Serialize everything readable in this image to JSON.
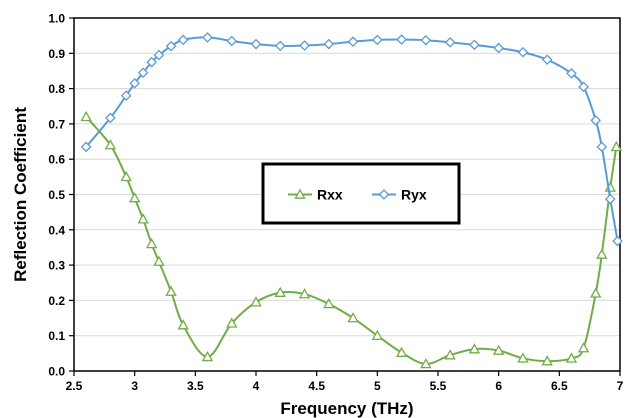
{
  "chart_data": {
    "type": "line",
    "xlabel": "Frequency (THz)",
    "ylabel": "Reflection Coefficient",
    "xlim": [
      2.5,
      7
    ],
    "ylim": [
      0,
      1.0
    ],
    "x_ticks": [
      "2.5",
      "3",
      "3.5",
      "4",
      "4.5",
      "5",
      "5.5",
      "6",
      "6.5",
      "7"
    ],
    "y_ticks": [
      "0.0",
      "0.1",
      "0.2",
      "0.3",
      "0.4",
      "0.5",
      "0.6",
      "0.7",
      "0.8",
      "0.9",
      "1.0"
    ],
    "grid": "horizontal",
    "legend_position": "center",
    "series": [
      {
        "name": "Rxx",
        "color": "#70ad47",
        "marker": "triangle",
        "points": [
          [
            2.6,
            0.72
          ],
          [
            2.8,
            0.64
          ],
          [
            2.93,
            0.55
          ],
          [
            3.0,
            0.49
          ],
          [
            3.07,
            0.43
          ],
          [
            3.14,
            0.36
          ],
          [
            3.2,
            0.31
          ],
          [
            3.3,
            0.225
          ],
          [
            3.4,
            0.13
          ],
          [
            3.6,
            0.04
          ],
          [
            3.8,
            0.135
          ],
          [
            4.0,
            0.195
          ],
          [
            4.2,
            0.222
          ],
          [
            4.4,
            0.218
          ],
          [
            4.6,
            0.19
          ],
          [
            4.8,
            0.15
          ],
          [
            5.0,
            0.1
          ],
          [
            5.2,
            0.052
          ],
          [
            5.4,
            0.02
          ],
          [
            5.6,
            0.045
          ],
          [
            5.8,
            0.062
          ],
          [
            6.0,
            0.058
          ],
          [
            6.2,
            0.036
          ],
          [
            6.4,
            0.028
          ],
          [
            6.6,
            0.036
          ],
          [
            6.7,
            0.065
          ],
          [
            6.8,
            0.22
          ],
          [
            6.85,
            0.33
          ],
          [
            6.92,
            0.52
          ],
          [
            6.97,
            0.635
          ]
        ]
      },
      {
        "name": "Ryx",
        "color": "#5b9bd5",
        "marker": "diamond",
        "points": [
          [
            2.6,
            0.635
          ],
          [
            2.8,
            0.717
          ],
          [
            2.93,
            0.78
          ],
          [
            3.0,
            0.815
          ],
          [
            3.07,
            0.845
          ],
          [
            3.14,
            0.875
          ],
          [
            3.2,
            0.895
          ],
          [
            3.3,
            0.92
          ],
          [
            3.4,
            0.938
          ],
          [
            3.6,
            0.945
          ],
          [
            3.8,
            0.935
          ],
          [
            4.0,
            0.926
          ],
          [
            4.2,
            0.921
          ],
          [
            4.4,
            0.922
          ],
          [
            4.6,
            0.926
          ],
          [
            4.8,
            0.933
          ],
          [
            5.0,
            0.938
          ],
          [
            5.2,
            0.939
          ],
          [
            5.4,
            0.937
          ],
          [
            5.6,
            0.931
          ],
          [
            5.8,
            0.924
          ],
          [
            6.0,
            0.915
          ],
          [
            6.2,
            0.903
          ],
          [
            6.4,
            0.882
          ],
          [
            6.6,
            0.843
          ],
          [
            6.7,
            0.805
          ],
          [
            6.8,
            0.71
          ],
          [
            6.85,
            0.635
          ],
          [
            6.92,
            0.487
          ],
          [
            6.98,
            0.368
          ]
        ]
      }
    ]
  }
}
